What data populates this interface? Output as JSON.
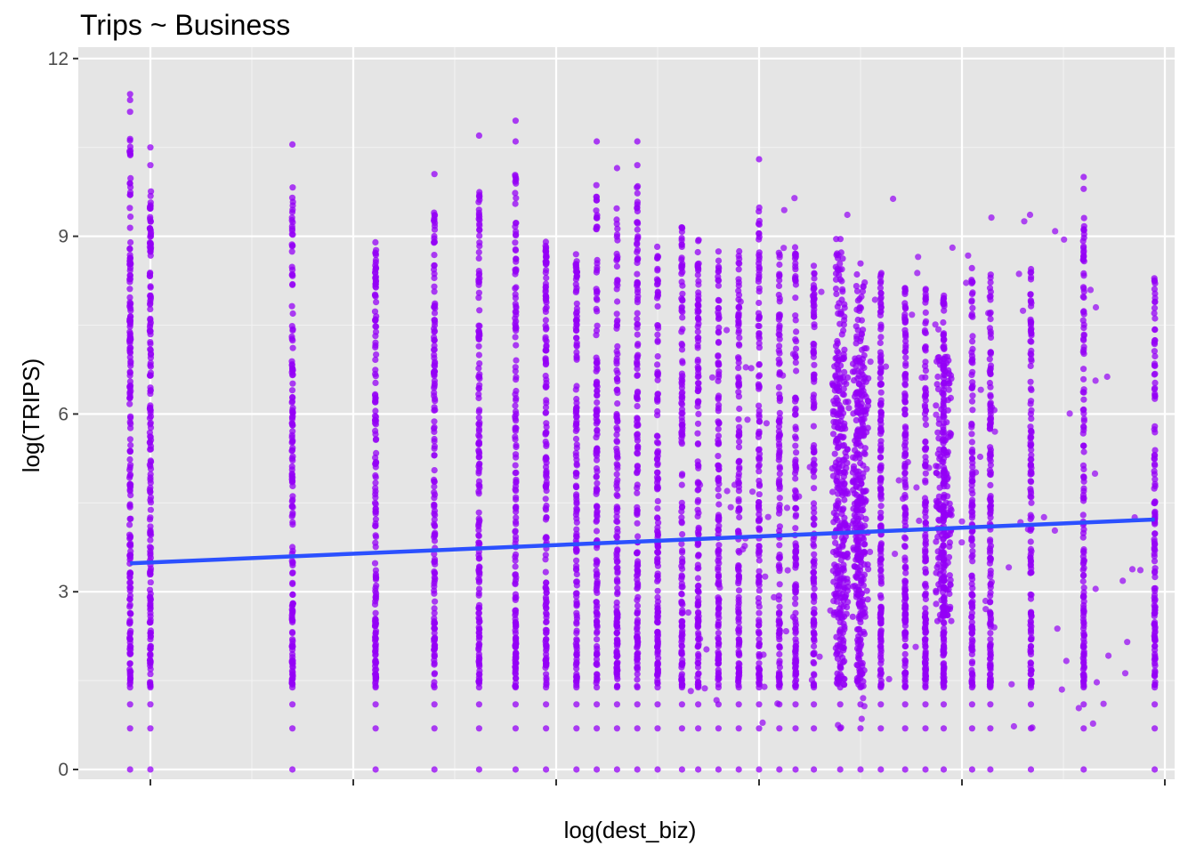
{
  "chart_data": {
    "type": "scatter",
    "title": "Trips ~ Business",
    "xlabel": "log(dest_biz)",
    "ylabel": "log(TRIPS)",
    "xlim": [
      0.35,
      5.35
    ],
    "ylim": [
      -0.55,
      12.0
    ],
    "x_ticks": [
      0.7,
      1.7,
      2.7,
      3.7,
      4.7,
      5.7
    ],
    "x_tick_labels": [
      "",
      "",
      "",
      "",
      "",
      ""
    ],
    "y_ticks": [
      0,
      3,
      6,
      9,
      12
    ],
    "y_tick_labels": [
      "0",
      "3",
      "6",
      "9",
      "12"
    ],
    "grid": true,
    "point_color": "#9400f5",
    "line_color": "#2b50ff",
    "panel_color": "#e5e5e5",
    "series": [
      {
        "kind": "points",
        "columns": [
          {
            "x": 0.6,
            "ymin": 0,
            "ymax": 11.5,
            "density": 1.0,
            "outliers": [
              11.4,
              11.3,
              11.1
            ]
          },
          {
            "x": 0.7,
            "ymin": 0,
            "ymax": 10.6,
            "density": 0.95,
            "outliers": [
              10.5,
              10.2
            ]
          },
          {
            "x": 1.4,
            "ymin": 0,
            "ymax": 10.6,
            "density": 0.75,
            "outliers": [
              10.55
            ]
          },
          {
            "x": 1.81,
            "ymin": 0,
            "ymax": 9.7,
            "density": 0.75,
            "outliers": []
          },
          {
            "x": 2.1,
            "ymin": 0,
            "ymax": 10.1,
            "density": 0.7,
            "outliers": [
              10.05
            ]
          },
          {
            "x": 2.32,
            "ymin": 0,
            "ymax": 10.7,
            "density": 0.75,
            "outliers": [
              10.7
            ]
          },
          {
            "x": 2.5,
            "ymin": 0,
            "ymax": 10.9,
            "density": 0.75,
            "outliers": [
              10.95,
              10.6
            ]
          },
          {
            "x": 2.65,
            "ymin": 0,
            "ymax": 9.6,
            "density": 0.7,
            "outliers": []
          },
          {
            "x": 2.8,
            "ymin": 0,
            "ymax": 9.4,
            "density": 0.65,
            "outliers": []
          },
          {
            "x": 2.9,
            "ymin": 0,
            "ymax": 10.6,
            "density": 0.65,
            "outliers": [
              10.6
            ]
          },
          {
            "x": 3.0,
            "ymin": 0,
            "ymax": 10.2,
            "density": 0.65,
            "outliers": [
              10.15
            ]
          },
          {
            "x": 3.1,
            "ymin": 0,
            "ymax": 10.6,
            "density": 0.65,
            "outliers": [
              10.6,
              10.2
            ]
          },
          {
            "x": 3.2,
            "ymin": 0,
            "ymax": 9.5,
            "density": 0.6,
            "outliers": []
          },
          {
            "x": 3.32,
            "ymin": 0,
            "ymax": 9.9,
            "density": 0.6,
            "outliers": []
          },
          {
            "x": 3.4,
            "ymin": 0,
            "ymax": 9.6,
            "density": 0.55,
            "outliers": []
          },
          {
            "x": 3.5,
            "ymin": 0,
            "ymax": 9.4,
            "density": 0.55,
            "outliers": []
          },
          {
            "x": 3.6,
            "ymin": 0,
            "ymax": 9.5,
            "density": 0.55,
            "outliers": []
          },
          {
            "x": 3.7,
            "ymin": 0,
            "ymax": 10.3,
            "density": 0.55,
            "outliers": [
              10.3
            ]
          },
          {
            "x": 3.8,
            "ymin": 0,
            "ymax": 9.5,
            "density": 0.5,
            "outliers": []
          },
          {
            "x": 3.88,
            "ymin": 0,
            "ymax": 9.5,
            "density": 0.5,
            "outliers": []
          },
          {
            "x": 3.97,
            "ymin": 0,
            "ymax": 9.2,
            "density": 0.5,
            "outliers": []
          },
          {
            "x": 4.1,
            "ymin": 0,
            "ymax": 9.7,
            "density": 0.95,
            "outliers": []
          },
          {
            "x": 4.2,
            "ymin": 0,
            "ymax": 9.2,
            "density": 0.95,
            "outliers": []
          },
          {
            "x": 4.3,
            "ymin": 0,
            "ymax": 9.0,
            "density": 0.8,
            "outliers": []
          },
          {
            "x": 4.42,
            "ymin": 0,
            "ymax": 8.8,
            "density": 0.65,
            "outliers": []
          },
          {
            "x": 4.52,
            "ymin": 0,
            "ymax": 8.7,
            "density": 0.6,
            "outliers": []
          },
          {
            "x": 4.61,
            "ymin": 0,
            "ymax": 8.6,
            "density": 0.85,
            "outliers": []
          },
          {
            "x": 4.75,
            "ymin": 0,
            "ymax": 9.1,
            "density": 0.5,
            "outliers": []
          },
          {
            "x": 4.84,
            "ymin": 0,
            "ymax": 9.0,
            "density": 0.65,
            "outliers": []
          },
          {
            "x": 5.04,
            "ymin": 0,
            "ymax": 9.2,
            "density": 0.5,
            "outliers": []
          },
          {
            "x": 5.3,
            "ymin": 0,
            "ymax": 10.0,
            "density": 0.6,
            "outliers": [
              10.0,
              9.8
            ]
          },
          {
            "x": 5.65,
            "ymin": 0,
            "ymax": 8.9,
            "density": 0.5,
            "outliers": []
          }
        ]
      },
      {
        "kind": "fit_line",
        "x": [
          0.6,
          5.65
        ],
        "y": [
          3.48,
          4.22
        ]
      }
    ]
  }
}
